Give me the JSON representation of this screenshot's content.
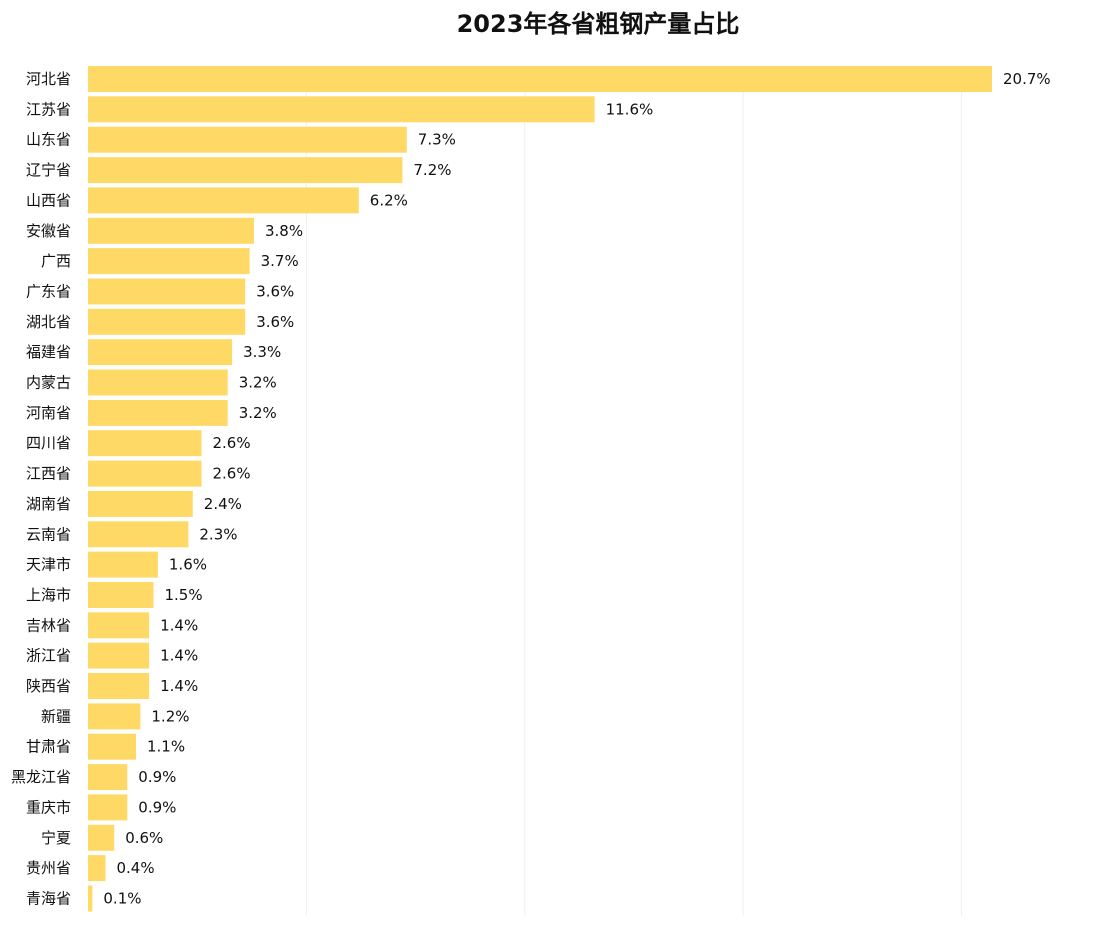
{
  "chart_data": {
    "type": "bar",
    "orientation": "horizontal",
    "title": "2023年各省粗钢产量占比",
    "xlabel": "",
    "ylabel": "",
    "xlim": [
      0,
      21
    ],
    "grid": true,
    "bar_color": "#FFD966",
    "categories": [
      "河北省",
      "江苏省",
      "山东省",
      "辽宁省",
      "山西省",
      "安徽省",
      "广西",
      "广东省",
      "湖北省",
      "福建省",
      "内蒙古",
      "河南省",
      "四川省",
      "江西省",
      "湖南省",
      "云南省",
      "天津市",
      "上海市",
      "吉林省",
      "浙江省",
      "陕西省",
      "新疆",
      "甘肃省",
      "黑龙江省",
      "重庆市",
      "宁夏",
      "贵州省",
      "青海省"
    ],
    "values": [
      20.7,
      11.6,
      7.3,
      7.2,
      6.2,
      3.8,
      3.7,
      3.6,
      3.6,
      3.3,
      3.2,
      3.2,
      2.6,
      2.6,
      2.4,
      2.3,
      1.6,
      1.5,
      1.4,
      1.4,
      1.4,
      1.2,
      1.1,
      0.9,
      0.9,
      0.6,
      0.4,
      0.1
    ],
    "value_labels": [
      "20.7%",
      "11.6%",
      "7.3%",
      "7.2%",
      "6.2%",
      "3.8%",
      "3.7%",
      "3.6%",
      "3.6%",
      "3.3%",
      "3.2%",
      "3.2%",
      "2.6%",
      "2.6%",
      "2.4%",
      "2.3%",
      "1.6%",
      "1.5%",
      "1.4%",
      "1.4%",
      "1.4%",
      "1.2%",
      "1.1%",
      "0.9%",
      "0.9%",
      "0.6%",
      "0.4%",
      "0.1%"
    ]
  }
}
